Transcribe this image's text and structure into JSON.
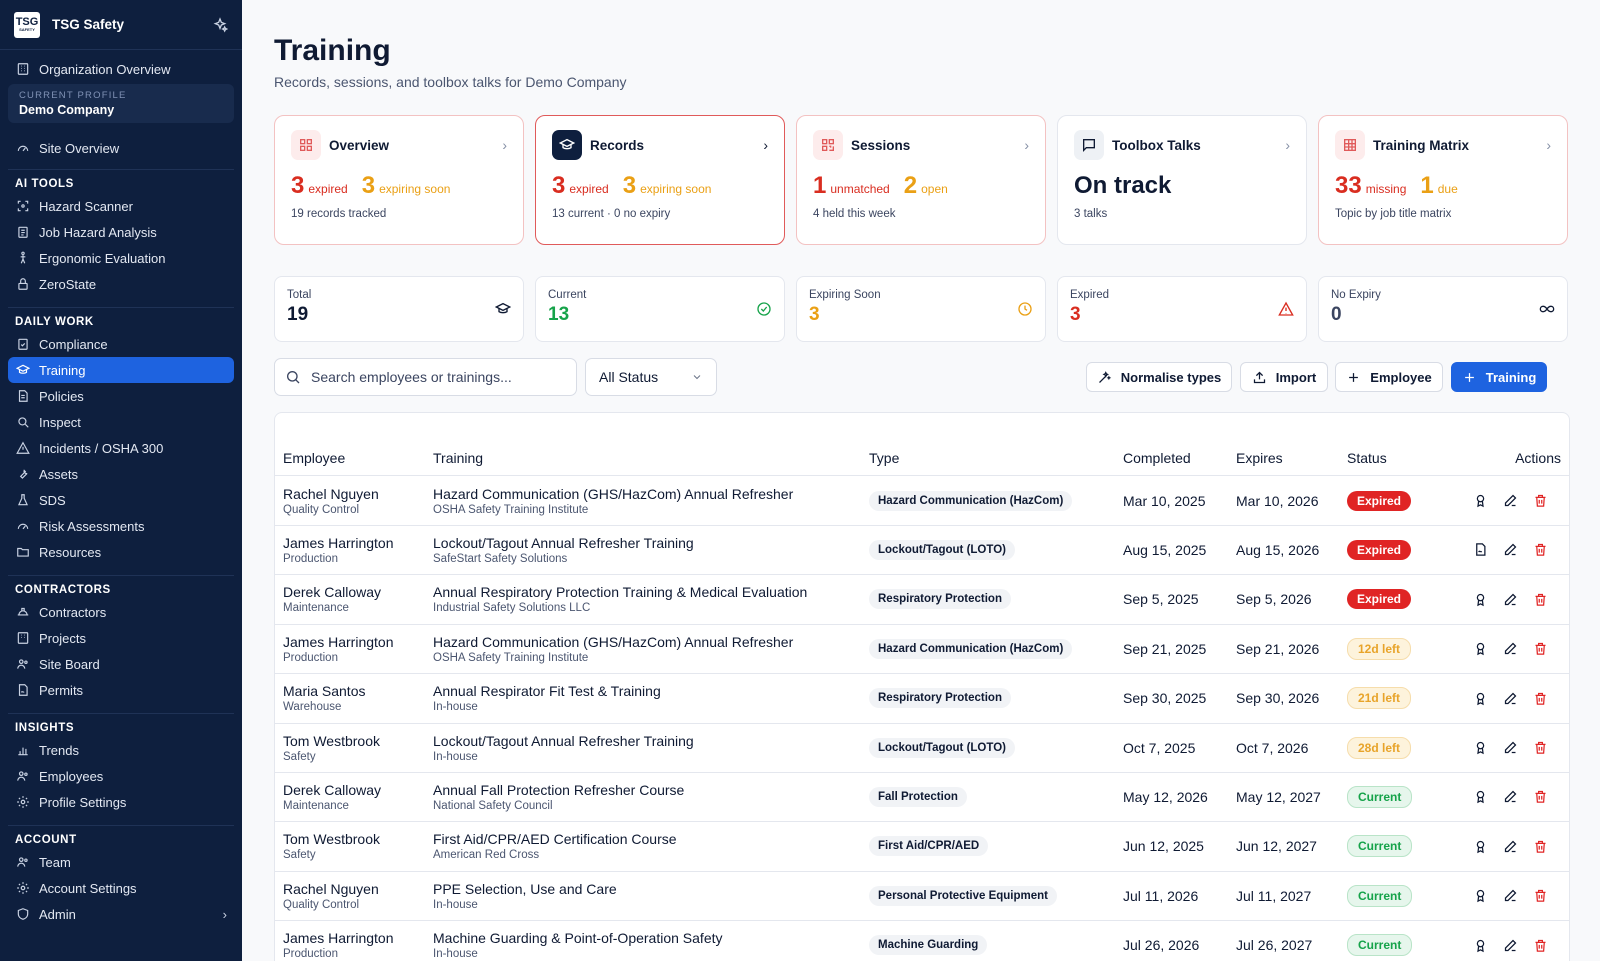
{
  "app": {
    "name": "TSG Safety",
    "logo_text": "TSG",
    "logo_sub": "SAFETY"
  },
  "sidebar": {
    "org_overview": "Organization Overview",
    "profile_label": "CURRENT PROFILE",
    "profile_name": "Demo Company",
    "site_overview": "Site Overview",
    "sections": [
      {
        "title": "AI TOOLS",
        "items": [
          "Hazard Scanner",
          "Job Hazard Analysis",
          "Ergonomic Evaluation",
          "ZeroState"
        ]
      },
      {
        "title": "DAILY WORK",
        "items": [
          "Compliance",
          "Training",
          "Policies",
          "Inspect",
          "Incidents / OSHA 300",
          "Assets",
          "SDS",
          "Risk Assessments",
          "Resources"
        ]
      },
      {
        "title": "CONTRACTORS",
        "items": [
          "Contractors",
          "Projects",
          "Site Board",
          "Permits"
        ]
      },
      {
        "title": "INSIGHTS",
        "items": [
          "Trends",
          "Employees",
          "Profile Settings"
        ]
      },
      {
        "title": "ACCOUNT",
        "items": [
          "Team",
          "Account Settings",
          "Admin"
        ]
      }
    ],
    "active_item": "Training"
  },
  "page": {
    "title": "Training",
    "subtitle": "Records, sessions, and toolbox talks for Demo Company"
  },
  "cards": [
    {
      "title": "Overview",
      "n1": "3",
      "l1": "expired",
      "n2": "3",
      "l2": "expiring soon",
      "foot": "19 records tracked"
    },
    {
      "title": "Records",
      "n1": "3",
      "l1": "expired",
      "n2": "3",
      "l2": "expiring soon",
      "foot": "13 current · 0 no expiry"
    },
    {
      "title": "Sessions",
      "n1": "1",
      "l1": "unmatched",
      "n2": "2",
      "l2": "open",
      "foot": "4 held this week"
    },
    {
      "title": "Toolbox Talks",
      "status": "On track",
      "foot": "3 talks"
    },
    {
      "title": "Training Matrix",
      "n1": "33",
      "l1": "missing",
      "n2": "1",
      "l2": "due",
      "foot": "Topic by job title matrix"
    }
  ],
  "metrics": [
    {
      "label": "Total",
      "value": "19"
    },
    {
      "label": "Current",
      "value": "13"
    },
    {
      "label": "Expiring Soon",
      "value": "3"
    },
    {
      "label": "Expired",
      "value": "3"
    },
    {
      "label": "No Expiry",
      "value": "0"
    }
  ],
  "toolbar": {
    "search_placeholder": "Search employees or trainings...",
    "status_filter": "All Status",
    "normalise": "Normalise types",
    "import": "Import",
    "employee": "Employee",
    "training": "Training"
  },
  "table": {
    "headers": [
      "Employee",
      "Training",
      "Type",
      "Completed",
      "Expires",
      "Status",
      "Actions"
    ],
    "rows": [
      {
        "employee": "Rachel Nguyen",
        "dept": "Quality Control",
        "training": "Hazard Communication (GHS/HazCom) Annual Refresher",
        "provider": "OSHA Safety Training Institute",
        "type": "Hazard Communication (HazCom)",
        "completed": "Mar 10, 2025",
        "expires": "Mar 10, 2026",
        "status": "Expired",
        "kind": "expired"
      },
      {
        "employee": "James Harrington",
        "dept": "Production",
        "training": "Lockout/Tagout Annual Refresher Training",
        "provider": "SafeStart Safety Solutions",
        "type": "Lockout/Tagout (LOTO)",
        "completed": "Aug 15, 2025",
        "expires": "Aug 15, 2026",
        "status": "Expired",
        "kind": "expired"
      },
      {
        "employee": "Derek Calloway",
        "dept": "Maintenance",
        "training": "Annual Respiratory Protection Training & Medical Evaluation",
        "provider": "Industrial Safety Solutions LLC",
        "type": "Respiratory Protection",
        "completed": "Sep 5, 2025",
        "expires": "Sep 5, 2026",
        "status": "Expired",
        "kind": "expired"
      },
      {
        "employee": "James Harrington",
        "dept": "Production",
        "training": "Hazard Communication (GHS/HazCom) Annual Refresher",
        "provider": "OSHA Safety Training Institute",
        "type": "Hazard Communication (HazCom)",
        "completed": "Sep 21, 2025",
        "expires": "Sep 21, 2026",
        "status": "12d left",
        "kind": "left"
      },
      {
        "employee": "Maria Santos",
        "dept": "Warehouse",
        "training": "Annual Respirator Fit Test & Training",
        "provider": "In-house",
        "type": "Respiratory Protection",
        "completed": "Sep 30, 2025",
        "expires": "Sep 30, 2026",
        "status": "21d left",
        "kind": "left"
      },
      {
        "employee": "Tom Westbrook",
        "dept": "Safety",
        "training": "Lockout/Tagout Annual Refresher Training",
        "provider": "In-house",
        "type": "Lockout/Tagout (LOTO)",
        "completed": "Oct 7, 2025",
        "expires": "Oct 7, 2026",
        "status": "28d left",
        "kind": "left"
      },
      {
        "employee": "Derek Calloway",
        "dept": "Maintenance",
        "training": "Annual Fall Protection Refresher Course",
        "provider": "National Safety Council",
        "type": "Fall Protection",
        "completed": "May 12, 2026",
        "expires": "May 12, 2027",
        "status": "Current",
        "kind": "current"
      },
      {
        "employee": "Tom Westbrook",
        "dept": "Safety",
        "training": "First Aid/CPR/AED Certification Course",
        "provider": "American Red Cross",
        "type": "First Aid/CPR/AED",
        "completed": "Jun 12, 2025",
        "expires": "Jun 12, 2027",
        "status": "Current",
        "kind": "current"
      },
      {
        "employee": "Rachel Nguyen",
        "dept": "Quality Control",
        "training": "PPE Selection, Use and Care",
        "provider": "In-house",
        "type": "Personal Protective Equipment",
        "completed": "Jul 11, 2026",
        "expires": "Jul 11, 2027",
        "status": "Current",
        "kind": "current"
      },
      {
        "employee": "James Harrington",
        "dept": "Production",
        "training": "Machine Guarding & Point-of-Operation Safety",
        "provider": "In-house",
        "type": "Machine Guarding",
        "completed": "Jul 26, 2026",
        "expires": "Jul 26, 2027",
        "status": "Current",
        "kind": "current"
      }
    ]
  },
  "colors": {
    "sidebar": "#0e1f3e",
    "accent": "#1e63e0",
    "danger": "#d92d20",
    "warning": "#eaa015",
    "success": "#16a34a"
  }
}
